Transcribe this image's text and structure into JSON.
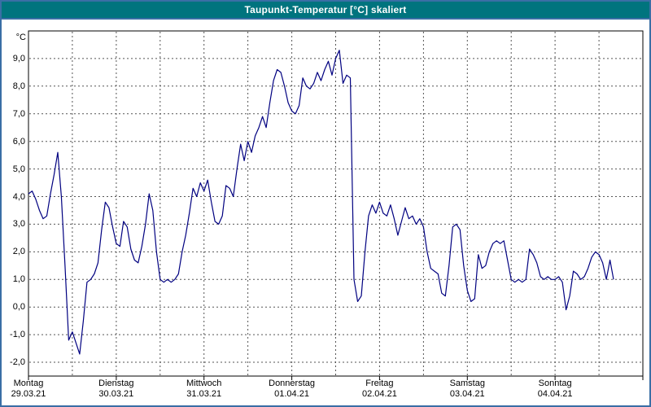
{
  "window": {
    "title": "Taupunkt-Temperatur [°C] skaliert"
  },
  "colors": {
    "titlebar_bg": "#00747e",
    "titlebar_text": "#ffffff",
    "frame_border": "#3a6ea5",
    "plot_border": "#000000",
    "grid": "#555555",
    "line": "#000080",
    "background": "#ffffff",
    "text": "#000000"
  },
  "chart_data": {
    "type": "line",
    "title": "Taupunkt-Temperatur [°C] skaliert",
    "xlabel": "",
    "ylabel": "°C",
    "ylim": [
      -2.5,
      10
    ],
    "grid": true,
    "legend": "none",
    "x_hours_total": 168,
    "x_gridline_interval_hours": 12,
    "yticks": {
      "values": [
        9,
        8,
        7,
        6,
        5,
        4,
        3,
        2,
        1,
        0,
        -1,
        -2
      ],
      "labels": [
        "9,0",
        "8,0",
        "7,0",
        "6,0",
        "5,0",
        "4,0",
        "3,0",
        "2,0",
        "1,0",
        "0,0",
        "-1,0",
        "-2,0"
      ]
    },
    "day_labels": [
      {
        "day": "Montag",
        "date": "29.03.21"
      },
      {
        "day": "Dienstag",
        "date": "30.03.21"
      },
      {
        "day": "Mittwoch",
        "date": "31.03.21"
      },
      {
        "day": "Donnerstag",
        "date": "01.04.21"
      },
      {
        "day": "Freitag",
        "date": "02.04.21"
      },
      {
        "day": "Samstag",
        "date": "03.04.21"
      },
      {
        "day": "Sonntag",
        "date": "04.04.21"
      }
    ],
    "series": [
      {
        "name": "Taupunkt-Temperatur",
        "color": "#000080",
        "x_start_hour": 0,
        "step_hours": 1,
        "values": [
          4.1,
          4.2,
          3.9,
          3.5,
          3.2,
          3.3,
          4.1,
          4.8,
          5.6,
          4.0,
          1.5,
          -1.2,
          -0.9,
          -1.3,
          -1.7,
          -0.5,
          0.9,
          1.0,
          1.2,
          1.6,
          2.8,
          3.8,
          3.6,
          2.9,
          2.3,
          2.2,
          3.1,
          2.9,
          2.1,
          1.7,
          1.6,
          2.2,
          3.0,
          4.1,
          3.5,
          2.0,
          1.0,
          0.9,
          1.0,
          0.9,
          1.0,
          1.2,
          2.0,
          2.6,
          3.4,
          4.3,
          4.0,
          4.5,
          4.2,
          4.6,
          3.8,
          3.1,
          3.0,
          3.3,
          4.4,
          4.3,
          4.0,
          5.0,
          5.9,
          5.3,
          6.0,
          5.6,
          6.2,
          6.5,
          6.9,
          6.5,
          7.4,
          8.2,
          8.6,
          8.5,
          8.0,
          7.4,
          7.1,
          7.0,
          7.3,
          8.3,
          8.0,
          7.9,
          8.1,
          8.5,
          8.2,
          8.6,
          8.9,
          8.4,
          9.0,
          9.3,
          8.1,
          8.4,
          8.3,
          1.0,
          0.2,
          0.4,
          2.0,
          3.3,
          3.7,
          3.4,
          3.8,
          3.4,
          3.3,
          3.7,
          3.2,
          2.6,
          3.1,
          3.6,
          3.2,
          3.3,
          3.0,
          3.2,
          2.9,
          2.0,
          1.4,
          1.3,
          1.2,
          0.5,
          0.4,
          1.5,
          2.9,
          3.0,
          2.8,
          1.5,
          0.6,
          0.2,
          0.3,
          1.9,
          1.4,
          1.5,
          2.0,
          2.3,
          2.4,
          2.3,
          2.4,
          1.7,
          1.0,
          0.9,
          1.0,
          0.9,
          1.0,
          2.1,
          1.9,
          1.6,
          1.1,
          1.0,
          1.1,
          1.0,
          1.0,
          1.1,
          0.9,
          -0.1,
          0.4,
          1.3,
          1.2,
          1.0,
          1.1,
          1.4,
          1.8,
          2.0,
          1.9,
          1.6,
          1.0,
          1.7,
          1.0
        ]
      }
    ]
  }
}
